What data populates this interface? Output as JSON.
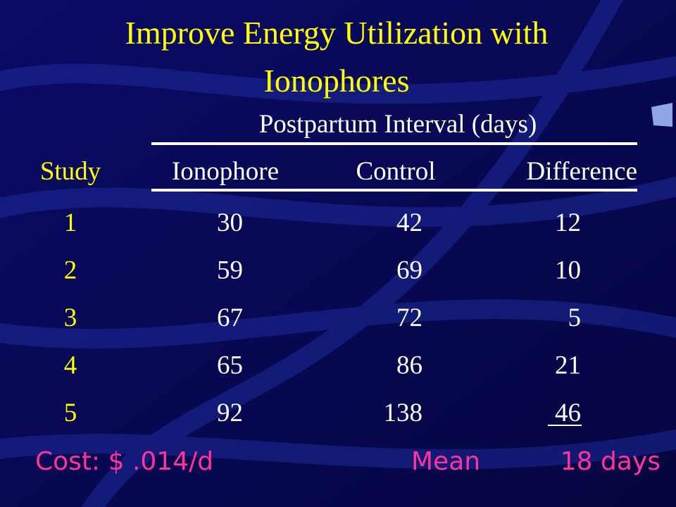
{
  "title": "Improve Energy Utilization with Ionophores",
  "table": {
    "group_header": "Postpartum Interval (days)",
    "columns": [
      "Study",
      "Ionophore",
      "Control",
      "Difference"
    ],
    "rows": [
      [
        1,
        30,
        42,
        12
      ],
      [
        2,
        59,
        69,
        10
      ],
      [
        3,
        67,
        72,
        5
      ],
      [
        4,
        65,
        86,
        21
      ],
      [
        5,
        92,
        138,
        46
      ]
    ]
  },
  "footer": {
    "cost": "Cost: $ .014/d",
    "mean_label": "Mean",
    "mean_value": "18 days"
  }
}
